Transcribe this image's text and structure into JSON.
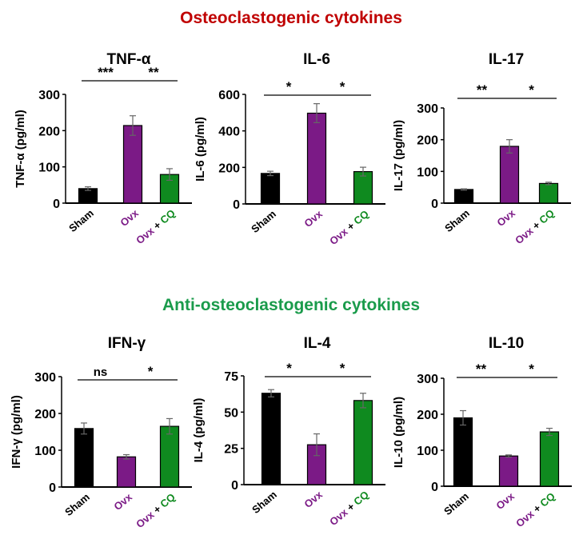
{
  "sections": [
    {
      "title": "Osteoclastogenic cytokines",
      "color": "#c00000"
    },
    {
      "title": "Anti-osteoclastogenic cytokines",
      "color": "#1a9b4b"
    }
  ],
  "group_colors": {
    "Sham": "#000000",
    "Ovx": "#7b1a86",
    "CQ": "#0f8a1f"
  },
  "x_labels": {
    "sham": "Sham",
    "ovx": "Ovx",
    "plus": " + ",
    "cq": "CQ"
  },
  "chart_data": [
    {
      "type": "bar",
      "title": "TNF-α",
      "ylabel": "TNF-α (pg/ml)",
      "ylim": [
        0,
        300
      ],
      "yticks": [
        0,
        100,
        200,
        300
      ],
      "categories": [
        "Sham",
        "Ovx",
        "Ovx + CQ"
      ],
      "values": [
        40,
        214,
        79
      ],
      "errors": [
        5,
        27,
        16
      ],
      "significance": [
        "***",
        "**"
      ]
    },
    {
      "type": "bar",
      "title": "IL-6",
      "ylabel": "IL-6 (pg/ml)",
      "ylim": [
        0,
        600
      ],
      "yticks": [
        0,
        200,
        400,
        600
      ],
      "categories": [
        "Sham",
        "Ovx",
        "Ovx + CQ"
      ],
      "values": [
        167,
        497,
        177
      ],
      "errors": [
        12,
        52,
        24
      ],
      "significance": [
        "*",
        "*"
      ]
    },
    {
      "type": "bar",
      "title": "IL-17",
      "ylabel": "IL-17 (pg/ml)",
      "ylim": [
        0,
        300
      ],
      "yticks": [
        0,
        100,
        200,
        300
      ],
      "categories": [
        "Sham",
        "Ovx",
        "Ovx + CQ"
      ],
      "values": [
        43,
        179,
        62
      ],
      "errors": [
        2,
        21,
        4
      ],
      "significance": [
        "**",
        "*"
      ]
    },
    {
      "type": "bar",
      "title": "IFN-γ",
      "ylabel": "IFN-γ (pg/ml)",
      "ylim": [
        0,
        300
      ],
      "yticks": [
        0,
        100,
        200,
        300
      ],
      "categories": [
        "Sham",
        "Ovx",
        "Ovx + CQ"
      ],
      "values": [
        159,
        82,
        165
      ],
      "errors": [
        15,
        6,
        21
      ],
      "significance": [
        "ns",
        "*"
      ]
    },
    {
      "type": "bar",
      "title": "IL-4",
      "ylabel": "IL-4 (pg/ml)",
      "ylim": [
        0,
        75
      ],
      "yticks": [
        0,
        25,
        50,
        75
      ],
      "categories": [
        "Sham",
        "Ovx",
        "Ovx + CQ"
      ],
      "values": [
        63,
        27.5,
        58
      ],
      "errors": [
        2.5,
        7.5,
        5
      ],
      "significance": [
        "*",
        "*"
      ]
    },
    {
      "type": "bar",
      "title": "IL-10",
      "ylabel": "IL-10 (pg/ml)",
      "ylim": [
        0,
        300
      ],
      "yticks": [
        0,
        100,
        200,
        300
      ],
      "categories": [
        "Sham",
        "Ovx",
        "Ovx + CQ"
      ],
      "values": [
        190,
        84,
        151
      ],
      "errors": [
        20,
        3,
        10
      ],
      "significance": [
        "**",
        "*"
      ]
    }
  ]
}
